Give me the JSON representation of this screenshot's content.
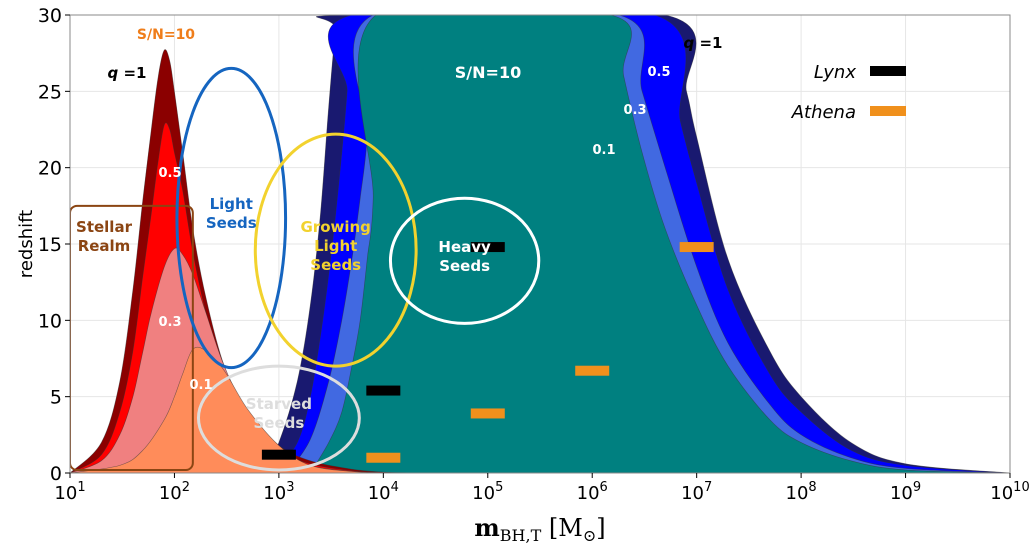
{
  "chart_data": {
    "type": "area",
    "xlabel_main": "m",
    "xlabel_sub": "BH,T",
    "xlabel_unit_open": " [M",
    "xlabel_unit_sub": "⊙",
    "xlabel_unit_close": "]",
    "ylabel": "redshift",
    "x_scale": "log",
    "xlim": [
      10,
      10000000000
    ],
    "ylim": [
      0,
      30
    ],
    "grid": true,
    "x_ticks": [
      {
        "value": 10,
        "base": "10",
        "exp": "1"
      },
      {
        "value": 100,
        "base": "10",
        "exp": "2"
      },
      {
        "value": 1000,
        "base": "10",
        "exp": "3"
      },
      {
        "value": 10000,
        "base": "10",
        "exp": "4"
      },
      {
        "value": 100000,
        "base": "10",
        "exp": "5"
      },
      {
        "value": 1000000,
        "base": "10",
        "exp": "6"
      },
      {
        "value": 10000000,
        "base": "10",
        "exp": "7"
      },
      {
        "value": 100000000,
        "base": "10",
        "exp": "8"
      },
      {
        "value": 1000000000,
        "base": "10",
        "exp": "9"
      },
      {
        "value": 10000000000,
        "base": "10",
        "exp": "10"
      }
    ],
    "y_ticks": [
      "0",
      "5",
      "10",
      "15",
      "20",
      "25",
      "30"
    ],
    "athena_bands": [
      {
        "label": "q =1",
        "color": "#8b0000",
        "x": [
          10,
          20,
          30,
          40,
          50,
          60,
          70,
          80,
          90,
          100,
          120,
          150,
          200,
          300,
          500,
          1000,
          2000,
          5000,
          10000,
          20000
        ],
        "y": [
          0,
          2,
          6,
          12,
          18,
          22.5,
          26,
          27.7,
          27,
          25,
          21,
          16,
          11.5,
          7,
          4,
          1.8,
          0.8,
          0.25,
          0.06,
          0
        ]
      },
      {
        "label": "0.5",
        "color": "#ff0000",
        "x": [
          10,
          20,
          30,
          40,
          50,
          60,
          70,
          80,
          90,
          100,
          120,
          150,
          200,
          300,
          500,
          1000,
          2000,
          5000,
          10000,
          20000
        ],
        "y": [
          0,
          1.2,
          4,
          8,
          13,
          17,
          20.5,
          22.8,
          22.5,
          21,
          18.5,
          14.5,
          10.5,
          6.5,
          3.6,
          1.5,
          0.6,
          0.15,
          0.03,
          0
        ]
      },
      {
        "label": "0.3",
        "color": "#f08080",
        "x": [
          10,
          20,
          30,
          40,
          50,
          60,
          80,
          100,
          120,
          150,
          200,
          300,
          500,
          1000,
          2000,
          5000,
          10000
        ],
        "y": [
          0,
          0.8,
          2.5,
          5,
          8,
          10.5,
          13.5,
          14.7,
          14.3,
          13,
          10.5,
          7,
          4,
          1.6,
          0.5,
          0.1,
          0
        ]
      },
      {
        "label": "0.1",
        "color": "#ff8c5a",
        "x": [
          10,
          30,
          50,
          80,
          100,
          120,
          150,
          200,
          300,
          500,
          1000,
          2000,
          5000,
          10000
        ],
        "y": [
          0,
          0.5,
          1.5,
          3.5,
          5,
          6.5,
          8.1,
          8,
          6.7,
          4.2,
          1.8,
          0.5,
          0.1,
          0
        ]
      }
    ],
    "lynx_bands": [
      {
        "label": "q =1",
        "color": "#191970",
        "x": [
          700,
          1000,
          1500,
          2000,
          2500,
          3000,
          3500,
          4000,
          5000000,
          8000000,
          10000000,
          20000000,
          50000000,
          100000000,
          300000000,
          1000000000,
          10000000000
        ],
        "y": [
          0,
          2,
          6,
          11,
          17,
          24,
          29,
          30,
          30,
          25,
          22,
          14,
          8,
          5,
          2,
          0.6,
          0
        ]
      },
      {
        "label": "0.5",
        "color": "#0000ff",
        "x": [
          900,
          1500,
          2000,
          2500,
          3000,
          3500,
          4000,
          4500,
          5000,
          4000000,
          7000000,
          10000000,
          20000000,
          50000000,
          100000000,
          300000000,
          1000000000,
          10000000000
        ],
        "y": [
          0,
          2,
          5,
          9,
          13,
          17,
          21,
          25,
          30,
          30,
          23,
          19,
          12,
          6.5,
          4,
          1.5,
          0.5,
          0
        ]
      },
      {
        "label": "0.3",
        "color": "#4169e1",
        "x": [
          1200,
          2000,
          3000,
          4000,
          5000,
          6000,
          7000,
          8000,
          1800000,
          3000000,
          5000000,
          10000000,
          20000000,
          50000000,
          100000000,
          300000000,
          1000000000,
          10000000000
        ],
        "y": [
          0,
          2.2,
          6,
          10,
          14,
          18,
          22,
          30,
          30,
          25,
          20,
          13.5,
          8.5,
          4.5,
          2.5,
          1,
          0.3,
          0
        ]
      },
      {
        "label": "0.1",
        "color": "#008080",
        "x": [
          2000,
          3000,
          4000,
          5000,
          6000,
          7000,
          8000,
          8500,
          1500000,
          2000000,
          3000000,
          5000000,
          10000000,
          20000000,
          50000000,
          100000000,
          300000000,
          1000000000,
          10000000000
        ],
        "y": [
          0,
          2,
          4,
          7,
          10,
          14,
          18,
          30,
          30,
          26,
          21,
          16,
          11,
          7,
          3.5,
          2,
          0.8,
          0.2,
          0
        ]
      }
    ],
    "athena_label": "S/N=10",
    "lynx_label": "S/N=10",
    "legend": [
      {
        "name": "Lynx",
        "color": "#000000"
      },
      {
        "name": "Athena",
        "color": "#f0901c"
      }
    ],
    "legend_position": "top-right",
    "lynx_markers": [
      {
        "x": 1000,
        "z": 1.2
      },
      {
        "x": 10000,
        "z": 5.4
      },
      {
        "x": 100000,
        "z": 14.8
      }
    ],
    "athena_markers": [
      {
        "x": 10000,
        "z": 1.0
      },
      {
        "x": 100000,
        "z": 3.9
      },
      {
        "x": 1000000,
        "z": 6.7
      },
      {
        "x": 10000000,
        "z": 14.8
      }
    ],
    "regions": [
      {
        "name": "Stellar Realm",
        "lines": [
          "Stellar",
          "Realm"
        ],
        "color": "#8b4513",
        "shape": "rect",
        "xlo": 10,
        "xhi": 150,
        "zlo": 0.2,
        "zhi": 17.5
      },
      {
        "name": "Light Seeds",
        "lines": [
          "Light",
          "Seeds"
        ],
        "color": "#1565c0",
        "shape": "ellipse",
        "cx": 350,
        "cz": 16.7,
        "dex_rx": 0.52,
        "rz": 9.8
      },
      {
        "name": "Growing Light Seeds",
        "lines": [
          "Growing",
          "Light",
          "Seeds"
        ],
        "color": "#f2d22e",
        "shape": "ellipse",
        "cx": 3500,
        "cz": 14.6,
        "dex_rx": 0.77,
        "rz": 7.6
      },
      {
        "name": "Heavy Seeds",
        "lines": [
          "Heavy",
          "Seeds"
        ],
        "color": "#ffffff",
        "shape": "ellipse",
        "cx": 60000,
        "cz": 13.9,
        "dex_rx": 0.71,
        "rz": 4.1
      },
      {
        "name": "Starved Seeds",
        "lines": [
          "Starved",
          "Seeds"
        ],
        "color": "#dddddd",
        "shape": "ellipse",
        "cx": 1000,
        "cz": 3.6,
        "dex_rx": 0.77,
        "rz": 3.4
      }
    ]
  }
}
